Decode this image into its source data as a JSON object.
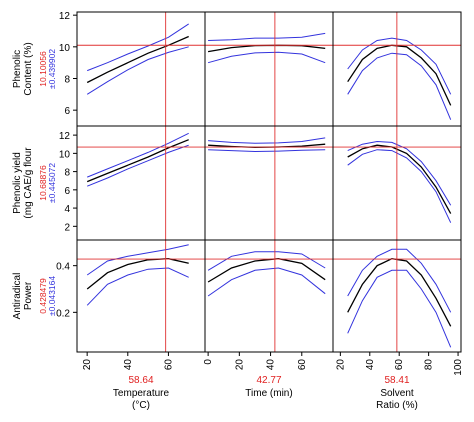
{
  "chart_data": {
    "type": "line",
    "title": "",
    "colors": {
      "mean": "#000000",
      "ci": "#3333dd",
      "crosshair": "#e03030",
      "value": "#e02020",
      "frame": "#000000"
    },
    "factors": [
      {
        "name": "temperature",
        "label_lines": [
          "Temperature",
          "(°C)"
        ],
        "current": 58.64,
        "current_label": "58.64",
        "xlim": [
          15,
          78
        ],
        "ticks": [
          20,
          40,
          60
        ],
        "tick_labels": [
          "20",
          "40",
          "60"
        ]
      },
      {
        "name": "time",
        "label_lines": [
          "Time (min)"
        ],
        "current": 42.77,
        "current_label": "42.77",
        "xlim": [
          -2,
          80
        ],
        "ticks": [
          0,
          20,
          40,
          60
        ],
        "tick_labels": [
          "0",
          "20",
          "40",
          "60"
        ]
      },
      {
        "name": "solvent",
        "label_lines": [
          "Solvent",
          "Ratio (%)"
        ],
        "current": 58.41,
        "current_label": "58.41",
        "xlim": [
          15,
          102
        ],
        "ticks": [
          20,
          40,
          60,
          80,
          100
        ],
        "tick_labels": [
          "20",
          "40",
          "60",
          "80",
          "100"
        ]
      }
    ],
    "responses": [
      {
        "name": "phenolic-content",
        "label_lines": [
          "Phenolic",
          "Content (%)"
        ],
        "value_label": "10.10056",
        "ci_label": "±0.439902",
        "current_value": 10.10056,
        "ylim": [
          5.0,
          12.2
        ],
        "ticks": [
          6,
          8,
          10,
          12
        ],
        "tick_labels": [
          "6",
          "8",
          "10",
          "12"
        ],
        "curves": [
          {
            "x": [
              20,
              30,
              40,
              50,
              60,
              70
            ],
            "mean": [
              7.75,
              8.4,
              9.0,
              9.6,
              10.1,
              10.65
            ],
            "lower": [
              7.0,
              7.8,
              8.55,
              9.2,
              9.65,
              10.0
            ],
            "upper": [
              8.5,
              9.0,
              9.55,
              10.05,
              10.6,
              11.45
            ]
          },
          {
            "x": [
              0,
              15,
              30,
              45,
              60,
              75
            ],
            "mean": [
              9.7,
              9.95,
              10.08,
              10.1,
              10.07,
              9.9
            ],
            "lower": [
              9.0,
              9.4,
              9.62,
              9.66,
              9.55,
              9.0
            ],
            "upper": [
              10.4,
              10.45,
              10.55,
              10.55,
              10.6,
              10.85
            ]
          },
          {
            "x": [
              25,
              35,
              45,
              55,
              65,
              75,
              85,
              95
            ],
            "mean": [
              7.8,
              9.2,
              9.9,
              10.1,
              10.0,
              9.3,
              8.3,
              6.3
            ],
            "lower": [
              7.0,
              8.5,
              9.3,
              9.6,
              9.5,
              8.8,
              7.6,
              5.4
            ],
            "upper": [
              8.6,
              9.8,
              10.4,
              10.55,
              10.4,
              9.8,
              8.9,
              7.0
            ]
          }
        ]
      },
      {
        "name": "phenolic-yield",
        "label_lines": [
          "Phenolic yield",
          "(mg CAE/g flour"
        ],
        "value_label": "10.68876",
        "ci_label": "±0.445072",
        "current_value": 10.68876,
        "ylim": [
          0.5,
          13.0
        ],
        "ticks": [
          2,
          4,
          6,
          8,
          10,
          12
        ],
        "tick_labels": [
          "2",
          "4",
          "6",
          "8",
          "10",
          "12"
        ],
        "curves": [
          {
            "x": [
              20,
              30,
              40,
              50,
              60,
              70
            ],
            "mean": [
              6.9,
              7.8,
              8.7,
              9.6,
              10.6,
              11.5
            ],
            "lower": [
              6.4,
              7.3,
              8.3,
              9.2,
              10.1,
              10.9
            ],
            "upper": [
              7.4,
              8.3,
              9.2,
              10.1,
              11.1,
              12.2
            ]
          },
          {
            "x": [
              0,
              15,
              30,
              45,
              60,
              75
            ],
            "mean": [
              10.9,
              10.75,
              10.65,
              10.7,
              10.8,
              11.0
            ],
            "lower": [
              10.4,
              10.3,
              10.2,
              10.25,
              10.35,
              10.4
            ],
            "upper": [
              11.4,
              11.2,
              11.1,
              11.15,
              11.3,
              11.7
            ]
          },
          {
            "x": [
              25,
              35,
              45,
              55,
              65,
              75,
              85,
              95
            ],
            "mean": [
              9.6,
              10.5,
              10.9,
              10.7,
              10.0,
              8.5,
              6.3,
              3.4
            ],
            "lower": [
              8.7,
              9.9,
              10.4,
              10.3,
              9.5,
              8.0,
              5.8,
              2.4
            ],
            "upper": [
              10.3,
              11.0,
              11.3,
              11.2,
              10.5,
              9.1,
              7.0,
              4.3
            ]
          }
        ]
      },
      {
        "name": "antiradical-power",
        "label_lines": [
          "Antiradical",
          "Power"
        ],
        "value_label": "0.428479",
        "ci_label": "±0.043164",
        "current_value": 0.428479,
        "ylim": [
          0.03,
          0.51
        ],
        "ticks": [
          0.2,
          0.4
        ],
        "tick_labels": [
          "0.2",
          "0.4"
        ],
        "curves": [
          {
            "x": [
              20,
              30,
              40,
              50,
              60,
              70
            ],
            "mean": [
              0.3,
              0.37,
              0.405,
              0.425,
              0.43,
              0.41
            ],
            "lower": [
              0.23,
              0.32,
              0.36,
              0.385,
              0.39,
              0.35
            ],
            "upper": [
              0.36,
              0.42,
              0.44,
              0.455,
              0.47,
              0.49
            ]
          },
          {
            "x": [
              0,
              15,
              30,
              45,
              60,
              75
            ],
            "mean": [
              0.33,
              0.39,
              0.42,
              0.43,
              0.41,
              0.34
            ],
            "lower": [
              0.27,
              0.34,
              0.38,
              0.39,
              0.36,
              0.28
            ],
            "upper": [
              0.38,
              0.44,
              0.46,
              0.46,
              0.45,
              0.39
            ]
          },
          {
            "x": [
              25,
              35,
              45,
              55,
              65,
              75,
              85,
              95
            ],
            "mean": [
              0.2,
              0.32,
              0.4,
              0.43,
              0.42,
              0.36,
              0.26,
              0.14
            ],
            "lower": [
              0.11,
              0.25,
              0.35,
              0.38,
              0.38,
              0.3,
              0.2,
              0.05
            ],
            "upper": [
              0.27,
              0.38,
              0.44,
              0.47,
              0.47,
              0.41,
              0.32,
              0.2
            ]
          }
        ]
      }
    ]
  }
}
